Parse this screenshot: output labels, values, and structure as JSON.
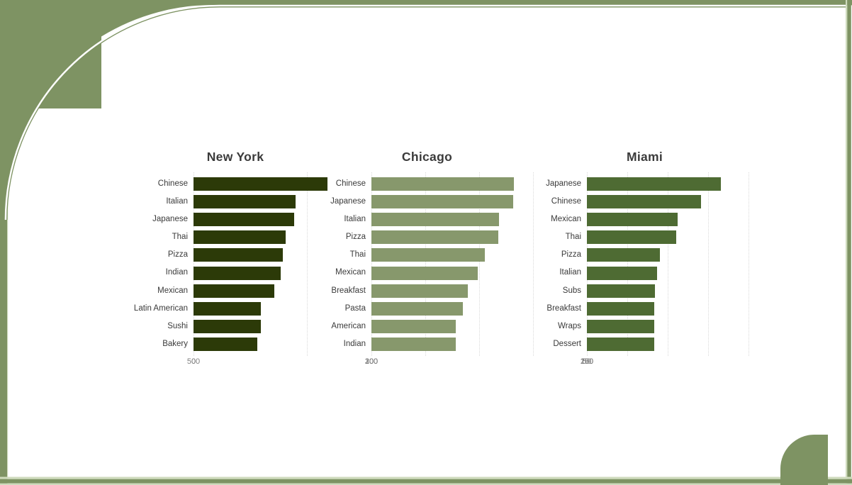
{
  "decor": {
    "frame_color": "#7e9363",
    "frame_light": "#cfdbbd",
    "background": "#ffffff",
    "title_color": "#3b3b3b",
    "label_color": "#3a3a3a",
    "tick_color": "#808080",
    "gridline_color": "#d9d9d9"
  },
  "chart_data": [
    {
      "type": "bar",
      "orientation": "horizontal",
      "title": "New York",
      "categories": [
        "Chinese",
        "Italian",
        "Japanese",
        "Thai",
        "Pizza",
        "Indian",
        "Mexican",
        "Latin American",
        "Sushi",
        "Bakery"
      ],
      "values": [
        590,
        450,
        445,
        405,
        395,
        385,
        355,
        298,
        296,
        282
      ],
      "xticks": [
        0,
        500
      ],
      "xrange": [
        0,
        600
      ],
      "bar_color": "#2c3a08",
      "grid": "dotted-vertical",
      "legend": "none"
    },
    {
      "type": "bar",
      "orientation": "horizontal",
      "title": "Chicago",
      "categories": [
        "Chinese",
        "Japanese",
        "Italian",
        "Pizza",
        "Thai",
        "Mexican",
        "Breakfast",
        "Pasta",
        "American",
        "Indian"
      ],
      "values": [
        265,
        263,
        237,
        236,
        211,
        198,
        179,
        170,
        157,
        156
      ],
      "xticks": [
        0,
        100,
        200,
        300
      ],
      "xrange": [
        0,
        304
      ],
      "bar_color": "#87986c",
      "grid": "dotted-vertical",
      "legend": "none"
    },
    {
      "type": "bar",
      "orientation": "horizontal",
      "title": "Miami",
      "categories": [
        "Japanese",
        "Chinese",
        "Mexican",
        "Thai",
        "Pizza",
        "Italian",
        "Subs",
        "Breakfast",
        "Wraps",
        "Dessert"
      ],
      "values": [
        166,
        141,
        112,
        111,
        90,
        87,
        84,
        83,
        83,
        83
      ],
      "xticks": [
        0,
        50,
        100,
        150,
        200
      ],
      "xrange": [
        0,
        208
      ],
      "bar_color": "#4e6b33",
      "grid": "dotted-vertical",
      "legend": "none"
    }
  ]
}
